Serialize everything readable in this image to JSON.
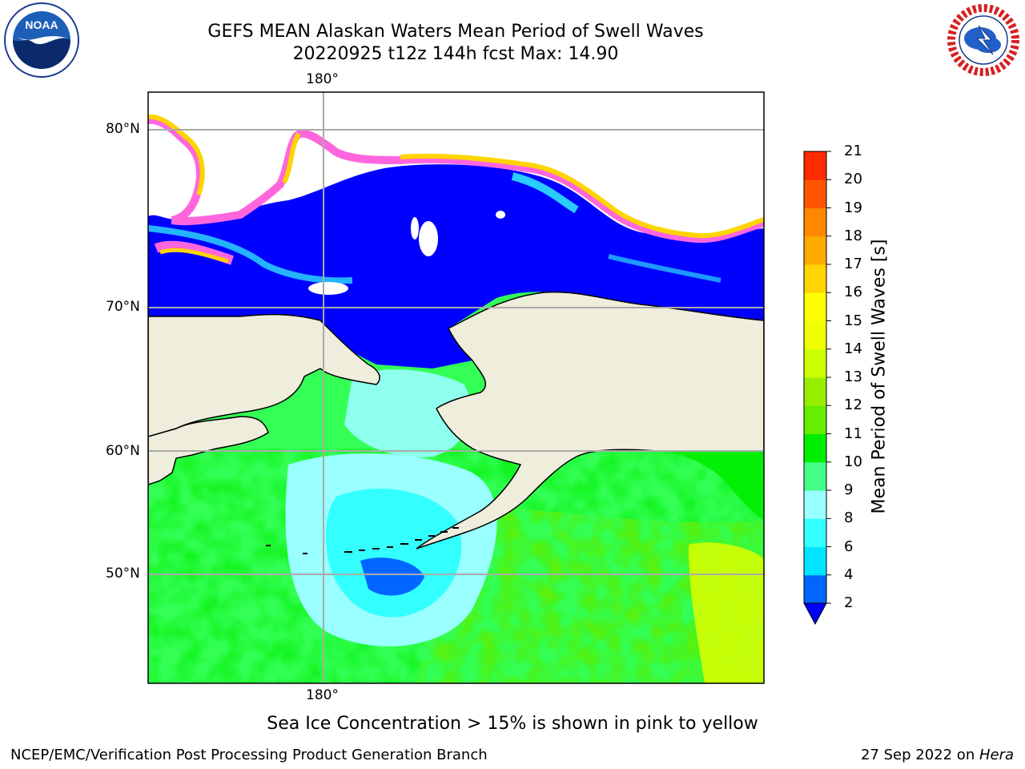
{
  "title": {
    "line1": "GEFS MEAN Alaskan Waters Mean Period of Swell Waves",
    "line2": "20220925 t12z 144h fcst   Max: 14.90"
  },
  "map": {
    "lon_top_label": "180°",
    "lon_bottom_label": "180°",
    "lat_labels": [
      "80°N",
      "70°N",
      "60°N",
      "50°N"
    ]
  },
  "colorbar": {
    "label": "Mean Period of Swell Waves [s]",
    "ticks": [
      "2",
      "4",
      "6",
      "8",
      "9",
      "10",
      "11",
      "12",
      "13",
      "14",
      "15",
      "16",
      "17",
      "18",
      "19",
      "20",
      "21"
    ],
    "colors": [
      "#0066ff",
      "#00e5ff",
      "#33ffff",
      "#99ffff",
      "#44ff88",
      "#00ee00",
      "#66ee00",
      "#99ee00",
      "#ccff00",
      "#eeff00",
      "#ffff00",
      "#ffd400",
      "#ffaa00",
      "#ff8800",
      "#ff5500",
      "#ff2a00"
    ],
    "extend_color": "#0000ff"
  },
  "caption": "Sea Ice Concentration > 15% is shown in pink to yellow",
  "footer": {
    "left": "NCEP/EMC/Verification Post Processing Product Generation Branch",
    "right_date": "27 Sep 2022 on ",
    "right_host": "Hera"
  },
  "logos": {
    "noaa": "NOAA",
    "nws": "NATIONAL WEATHER SERVICE"
  }
}
